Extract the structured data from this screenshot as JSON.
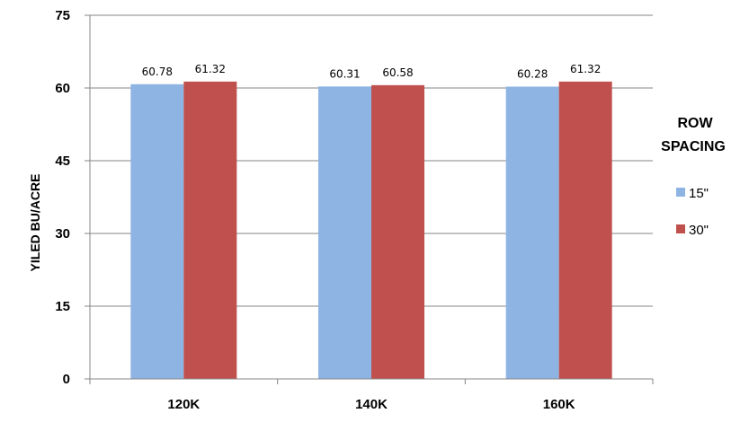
{
  "chart_data": {
    "type": "bar",
    "categories": [
      "120K",
      "140K",
      "160K"
    ],
    "series": [
      {
        "name": "15\"",
        "values": [
          60.78,
          60.31,
          60.28
        ],
        "color": "#8eb4e3"
      },
      {
        "name": "30\"",
        "values": [
          61.32,
          60.58,
          61.32
        ],
        "color": "#c0504d"
      }
    ],
    "data_labels": [
      [
        "60.78",
        "60.31",
        "60.28"
      ],
      [
        "61.32",
        "60.58",
        "61.32"
      ]
    ],
    "title": "",
    "xlabel": "",
    "ylabel": "YILED BU/ACRE",
    "ylim": [
      0,
      75
    ],
    "yticks": [
      0,
      15,
      30,
      45,
      60,
      75
    ],
    "ytick_labels": [
      "0",
      "15",
      "30",
      "45",
      "60",
      "75"
    ],
    "grid": true,
    "legend": {
      "title_lines": [
        "ROW",
        "SPACING"
      ],
      "position": "right"
    }
  }
}
